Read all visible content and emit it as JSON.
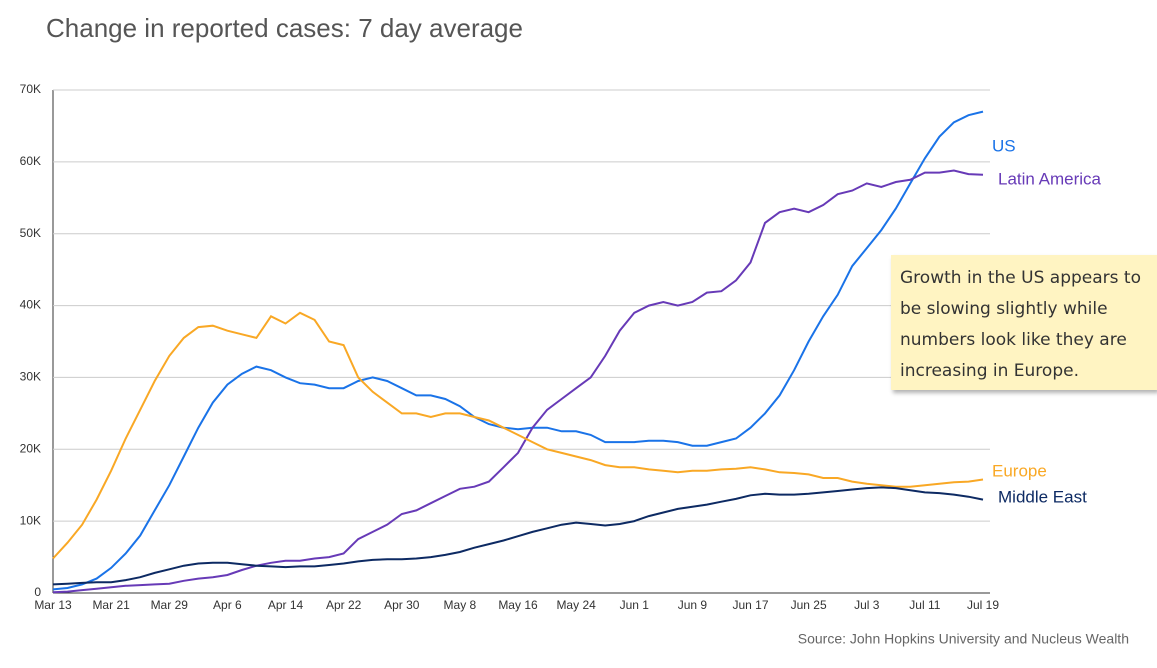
{
  "chart_data": {
    "type": "line",
    "title": "Change in reported cases: 7 day average",
    "source": "Source: John Hopkins University and Nucleus Wealth",
    "annotation": "Growth in the US appears to be slowing slightly while numbers look like they are increasing in Europe.",
    "categories": [
      "Mar 13",
      null,
      null,
      null,
      "Mar 21",
      null,
      null,
      null,
      "Mar 29",
      null,
      null,
      null,
      "Apr 6",
      null,
      null,
      null,
      "Apr 14",
      null,
      null,
      null,
      "Apr 22",
      null,
      null,
      null,
      "Apr 30",
      null,
      null,
      null,
      "May 8",
      null,
      null,
      null,
      "May 16",
      null,
      null,
      null,
      "May 24",
      null,
      null,
      null,
      "Jun 1",
      null,
      null,
      null,
      "Jun 9",
      null,
      null,
      null,
      "Jun 17",
      null,
      null,
      null,
      "Jun 25",
      null,
      null,
      null,
      "Jul 3",
      null,
      null,
      null,
      "Jul 11",
      null,
      null,
      null,
      "Jul 19"
    ],
    "ylim": [
      0,
      70
    ],
    "yticks": [
      {
        "value": 0,
        "label": "0"
      },
      {
        "value": 10,
        "label": "10K"
      },
      {
        "value": 20,
        "label": "20K"
      },
      {
        "value": 30,
        "label": "30K"
      },
      {
        "value": 40,
        "label": "40K"
      },
      {
        "value": 50,
        "label": "50K"
      },
      {
        "value": 60,
        "label": "60K"
      },
      {
        "value": 70,
        "label": "70K"
      }
    ],
    "grid": true,
    "series": [
      {
        "name": "US",
        "color": "#1a73e8",
        "values": [
          0.5,
          0.7,
          1.2,
          2,
          3.5,
          5.5,
          8,
          11.5,
          15,
          19,
          23,
          26.5,
          29,
          30.5,
          31.5,
          31,
          30,
          29.2,
          29,
          28.5,
          28.5,
          29.5,
          30,
          29.5,
          28.5,
          27.5,
          27.5,
          27,
          26,
          24.5,
          23.5,
          23,
          22.8,
          23,
          23,
          22.5,
          22.5,
          22,
          21,
          21,
          21,
          21.2,
          21.2,
          21,
          20.5,
          20.5,
          21,
          21.5,
          23,
          25,
          27.5,
          31,
          35,
          38.5,
          41.5,
          45.5,
          48,
          50.5,
          53.5,
          57,
          60.5,
          63.5,
          65.5,
          66.5,
          67
        ]
      },
      {
        "name": "Latin America",
        "color": "#673ab7",
        "values": [
          0.1,
          0.2,
          0.4,
          0.6,
          0.8,
          1,
          1.1,
          1.2,
          1.3,
          1.7,
          2,
          2.2,
          2.5,
          3.2,
          3.8,
          4.2,
          4.5,
          4.5,
          4.8,
          5,
          5.5,
          7.5,
          8.5,
          9.5,
          11,
          11.5,
          12.5,
          13.5,
          14.5,
          14.8,
          15.5,
          17.5,
          19.5,
          23,
          25.5,
          27,
          28.5,
          30,
          33,
          36.5,
          39,
          40,
          40.5,
          40,
          40.5,
          41.8,
          42,
          43.5,
          46,
          51.5,
          53,
          53.5,
          53,
          54,
          55.5,
          56,
          57,
          56.5,
          57.2,
          57.5,
          58.5,
          58.5,
          58.8,
          58.3,
          58.2
        ]
      },
      {
        "name": "Europe",
        "color": "#f9a825",
        "values": [
          4.8,
          7,
          9.5,
          13,
          17,
          21.5,
          25.5,
          29.5,
          33,
          35.5,
          37,
          37.2,
          36.5,
          36,
          35.5,
          38.5,
          37.5,
          39,
          38,
          35,
          34.5,
          30,
          28,
          26.5,
          25,
          25,
          24.5,
          25,
          25,
          24.5,
          24,
          23,
          22,
          21,
          20,
          19.5,
          19,
          18.5,
          17.8,
          17.5,
          17.5,
          17.2,
          17,
          16.8,
          17,
          17,
          17.2,
          17.3,
          17.5,
          17.2,
          16.8,
          16.7,
          16.5,
          16,
          16,
          15.5,
          15.2,
          15,
          14.8,
          14.8,
          15,
          15.2,
          15.4,
          15.5,
          15.8
        ]
      },
      {
        "name": "Middle East",
        "color": "#0d2a63",
        "values": [
          1.2,
          1.3,
          1.4,
          1.5,
          1.5,
          1.8,
          2.2,
          2.8,
          3.3,
          3.8,
          4.1,
          4.2,
          4.2,
          4,
          3.8,
          3.7,
          3.6,
          3.7,
          3.7,
          3.9,
          4.1,
          4.4,
          4.6,
          4.7,
          4.7,
          4.8,
          5,
          5.3,
          5.7,
          6.3,
          6.8,
          7.3,
          7.9,
          8.5,
          9,
          9.5,
          9.8,
          9.6,
          9.4,
          9.6,
          10,
          10.7,
          11.2,
          11.7,
          12,
          12.3,
          12.7,
          13.1,
          13.6,
          13.8,
          13.7,
          13.7,
          13.8,
          14,
          14.2,
          14.4,
          14.6,
          14.7,
          14.6,
          14.3,
          14,
          13.9,
          13.7,
          13.4,
          13
        ]
      }
    ]
  }
}
